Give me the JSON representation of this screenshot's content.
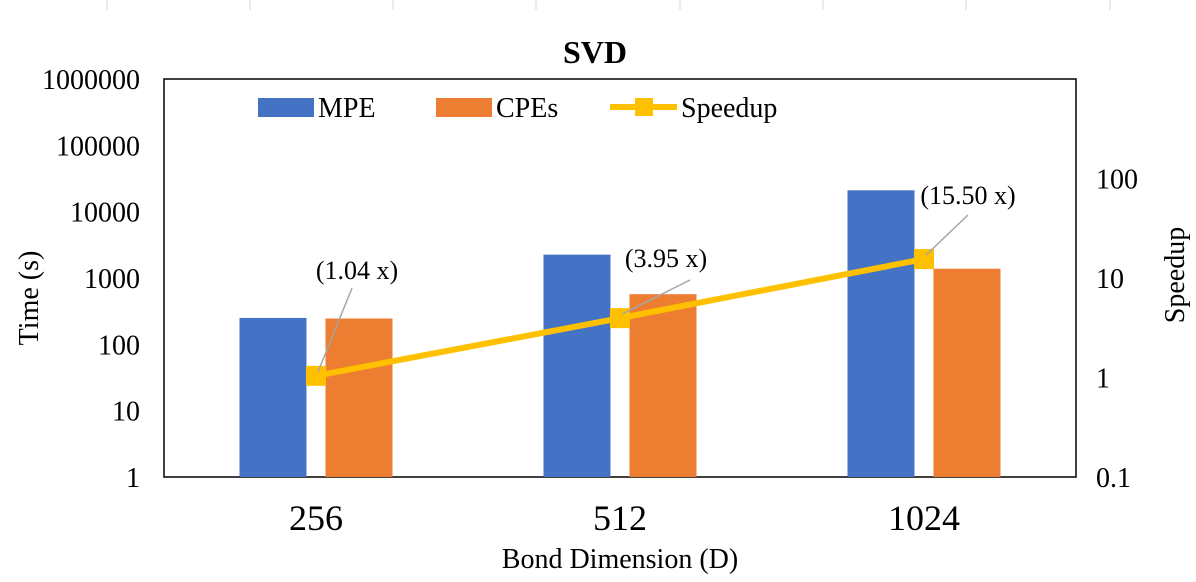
{
  "chart_data": {
    "type": "bar",
    "title": "SVD",
    "xlabel": "Bond Dimension (D)",
    "ylabel": "Time (s)",
    "y2label": "Speedup",
    "yscale": "log",
    "ylim": [
      1,
      1000000
    ],
    "y2lim": [
      0.1,
      1000
    ],
    "yticks": [
      "1",
      "10",
      "100",
      "1000",
      "10000",
      "100000",
      "1000000"
    ],
    "y2ticks": [
      "0.1",
      "1",
      "10",
      "100"
    ],
    "categories": [
      "256",
      "512",
      "1024"
    ],
    "series": [
      {
        "name": "MPE",
        "color": "#4472C4",
        "values": [
          250,
          2250,
          21000
        ]
      },
      {
        "name": "CPEs",
        "color": "#ED7D31",
        "values": [
          245,
          570,
          1380
        ]
      }
    ],
    "line": {
      "name": "Speedup",
      "color": "#FFC000",
      "values": [
        1.04,
        3.95,
        15.5
      ]
    },
    "annotations": [
      "(1.04 x)",
      "(3.95 x)",
      "(15.50 x)"
    ],
    "legend_position": "top-left"
  }
}
